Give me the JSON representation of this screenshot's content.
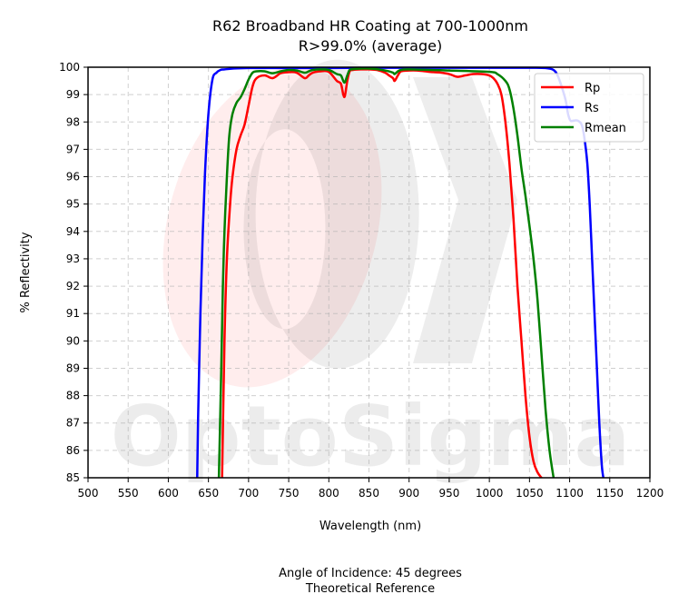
{
  "chart_data": {
    "type": "line",
    "title": "R62 Broadband HR Coating at 700-1000nm",
    "subtitle": "R>99.0% (average)",
    "xlabel": "Wavelength (nm)",
    "ylabel": "% Reflectivity",
    "xlim": [
      500,
      1200
    ],
    "ylim": [
      85,
      100
    ],
    "xticks": [
      "500",
      "550",
      "600",
      "650",
      "700",
      "750",
      "800",
      "850",
      "900",
      "950",
      "1000",
      "1050",
      "1100",
      "1150",
      "1200"
    ],
    "yticks": [
      "85",
      "86",
      "87",
      "88",
      "89",
      "90",
      "91",
      "92",
      "93",
      "94",
      "95",
      "96",
      "97",
      "98",
      "99",
      "100"
    ],
    "grid": true,
    "legend_position": "top-right",
    "footer": [
      "Angle of Incidence: 45 degrees",
      "Theoretical Reference"
    ],
    "watermark": "OptoSigma",
    "series": [
      {
        "name": "Rp",
        "color": "#ff0000",
        "x": [
          667,
          670,
          673,
          677,
          680,
          685,
          690,
          695,
          700,
          705,
          710,
          720,
          730,
          740,
          750,
          760,
          770,
          775,
          780,
          790,
          800,
          810,
          815,
          818,
          820,
          823,
          826,
          830,
          840,
          850,
          860,
          870,
          875,
          880,
          882,
          886,
          890,
          900,
          910,
          920,
          930,
          940,
          950,
          960,
          970,
          980,
          990,
          1000,
          1005,
          1010,
          1015,
          1020,
          1025,
          1030,
          1035,
          1040,
          1045,
          1050,
          1055,
          1060,
          1065
        ],
        "values": [
          85,
          90,
          93,
          95,
          96,
          97,
          97.5,
          97.9,
          98.6,
          99.3,
          99.6,
          99.7,
          99.6,
          99.78,
          99.82,
          99.8,
          99.6,
          99.7,
          99.8,
          99.85,
          99.83,
          99.5,
          99.4,
          99.0,
          98.95,
          99.5,
          99.85,
          99.9,
          99.92,
          99.92,
          99.9,
          99.8,
          99.7,
          99.6,
          99.5,
          99.7,
          99.85,
          99.88,
          99.88,
          99.85,
          99.82,
          99.8,
          99.75,
          99.65,
          99.7,
          99.75,
          99.75,
          99.7,
          99.6,
          99.4,
          99.0,
          98.0,
          96.5,
          94.5,
          92.0,
          90.0,
          88.0,
          86.5,
          85.6,
          85.2,
          85.0
        ]
      },
      {
        "name": "Rs",
        "color": "#0000ff",
        "x": [
          636,
          637,
          640,
          643,
          646,
          650,
          655,
          660,
          665,
          670,
          680,
          700,
          750,
          800,
          850,
          900,
          950,
          1000,
          1050,
          1070,
          1080,
          1085,
          1090,
          1095,
          1098,
          1101,
          1105,
          1110,
          1115,
          1118,
          1122,
          1125,
          1128,
          1131,
          1134,
          1137,
          1140,
          1142
        ],
        "values": [
          85,
          87,
          91,
          94,
          96.3,
          98.3,
          99.55,
          99.8,
          99.9,
          99.92,
          99.95,
          99.97,
          99.97,
          99.97,
          99.98,
          99.98,
          99.98,
          99.98,
          99.98,
          99.97,
          99.9,
          99.7,
          99.3,
          98.8,
          98.3,
          98.05,
          98.05,
          98.05,
          97.9,
          97.5,
          96.5,
          95.0,
          93.0,
          91.0,
          89.0,
          87.0,
          85.5,
          85.0
        ]
      },
      {
        "name": "Rmean",
        "color": "#008000",
        "x": [
          663,
          666,
          668,
          670,
          673,
          676,
          680,
          685,
          690,
          695,
          700,
          705,
          710,
          720,
          730,
          740,
          750,
          760,
          770,
          775,
          780,
          790,
          800,
          810,
          815,
          818,
          820,
          823,
          826,
          830,
          840,
          850,
          860,
          870,
          875,
          880,
          882,
          886,
          890,
          900,
          950,
          1000,
          1010,
          1020,
          1025,
          1030,
          1035,
          1040,
          1045,
          1050,
          1055,
          1060,
          1065,
          1070,
          1075,
          1080
        ],
        "values": [
          85,
          89,
          92,
          94,
          96,
          97.5,
          98.3,
          98.7,
          98.9,
          99.2,
          99.55,
          99.8,
          99.85,
          99.85,
          99.78,
          99.85,
          99.9,
          99.88,
          99.8,
          99.85,
          99.9,
          99.92,
          99.9,
          99.75,
          99.7,
          99.5,
          99.45,
          99.7,
          99.9,
          99.93,
          99.95,
          99.95,
          99.93,
          99.88,
          99.85,
          99.8,
          99.75,
          99.85,
          99.9,
          99.92,
          99.88,
          99.83,
          99.75,
          99.5,
          99.2,
          98.5,
          97.5,
          96.3,
          95.3,
          94.2,
          93.0,
          91.5,
          89.5,
          87.5,
          86.0,
          85.0
        ]
      }
    ]
  }
}
